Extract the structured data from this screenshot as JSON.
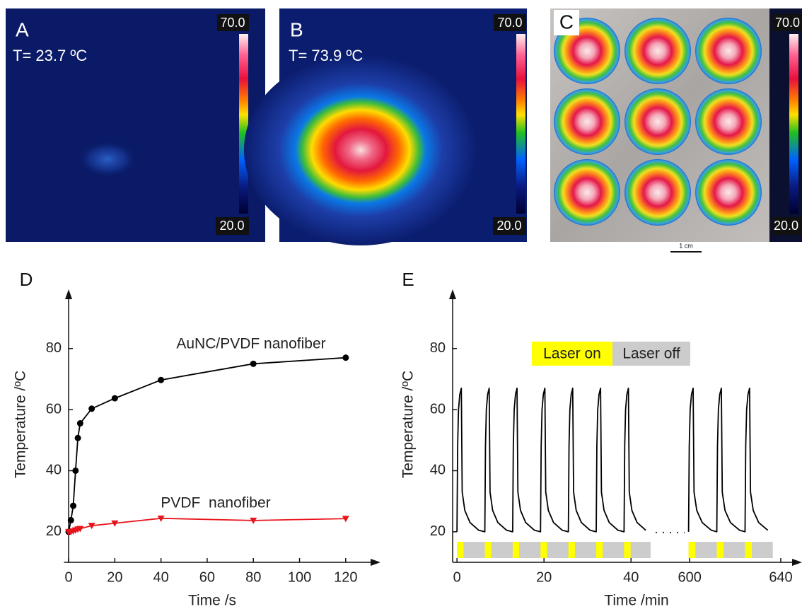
{
  "images": [
    {
      "label": "A",
      "annotation": "T= 23.7 ºC",
      "scale_max": "70.0",
      "scale_min": "20.0"
    },
    {
      "label": "B",
      "annotation": "T= 73.9 ºC",
      "scale_max": "70.0",
      "scale_min": "20.0"
    },
    {
      "label": "C",
      "scale_max": "70.0",
      "scale_min": "20.0",
      "scale_bar": "1 cm"
    }
  ],
  "chart_data": [
    {
      "type": "line",
      "panel_label": "D",
      "x_label": "Time /s",
      "y_label": "Temperature /ºC",
      "x": [
        0,
        1,
        2,
        3,
        4,
        5,
        10,
        20,
        40,
        80,
        120
      ],
      "series": [
        {
          "name": "AuNC/PVDF nanofiber",
          "color": "#000000",
          "marker": "circle",
          "values": [
            20,
            23.8,
            28.5,
            40,
            50.7,
            55.5,
            60.3,
            63.7,
            69.7,
            75,
            77
          ]
        },
        {
          "name": "PVDF  nanofiber",
          "color": "#e8141b",
          "marker": "triangle-down",
          "values": [
            20,
            20,
            20.2,
            20.5,
            20.8,
            21,
            22,
            22.8,
            24.4,
            23.7,
            24.3
          ]
        }
      ],
      "xlim": [
        -2,
        132
      ],
      "xticks": [
        0,
        20,
        40,
        60,
        80,
        100,
        120
      ],
      "ylim": [
        10,
        98
      ],
      "yticks": [
        20,
        40,
        60,
        80
      ],
      "grid": false
    },
    {
      "type": "line",
      "panel_label": "E",
      "x_label": "Time /min",
      "y_label": "Temperature /ºC",
      "x": [
        0,
        0.15,
        0.35,
        0.65,
        1,
        1.2,
        1.8,
        3,
        5,
        6.4,
        6.55,
        6.75,
        7.05,
        7.4,
        7.6,
        8.2,
        9.4,
        11.4,
        12.8,
        12.95,
        13.15,
        13.45,
        13.8,
        14,
        14.6,
        15.8,
        17.8,
        19.2,
        19.35,
        19.55,
        19.85,
        20.2,
        20.4,
        21,
        22.2,
        24.2,
        25.6,
        25.75,
        25.95,
        26.25,
        26.6,
        26.8,
        27.4,
        28.6,
        30.6,
        32,
        32.15,
        32.35,
        32.65,
        33,
        33.2,
        33.8,
        35,
        37,
        38.4,
        38.55,
        38.75,
        39.05,
        39.4,
        39.6,
        40.2,
        41.4,
        43.4,
        44.5,
        599.5,
        599.8,
        600.2,
        600.8,
        601.5,
        601.9,
        603.1,
        605.5,
        609.5,
        611.9,
        612.2,
        612.6,
        613.2,
        613.9,
        614.3,
        615.5,
        617.9,
        621.9,
        624.3,
        624.6,
        625,
        625.6,
        626.3,
        626.7,
        627.9,
        630.3,
        634.3
      ],
      "series": [
        {
          "color": "#000000",
          "values": [
            20,
            48,
            60,
            65,
            67,
            33,
            27,
            23,
            20.5,
            20,
            48,
            60,
            65,
            67,
            33,
            27,
            23,
            20.5,
            20,
            48,
            60,
            65,
            67,
            33,
            27,
            23,
            20.5,
            20,
            48,
            60,
            65,
            67,
            33,
            27,
            23,
            20.5,
            20,
            48,
            60,
            65,
            67,
            33,
            27,
            23,
            20.5,
            20,
            48,
            60,
            65,
            67,
            33,
            27,
            23,
            20.5,
            20,
            48,
            60,
            65,
            67,
            33,
            27,
            23,
            20.5,
            null,
            20,
            48,
            60,
            65,
            67,
            33,
            27,
            23,
            20.5,
            20,
            48,
            60,
            65,
            67,
            33,
            27,
            23,
            20.5,
            20,
            48,
            60,
            65,
            67,
            33,
            27,
            23,
            20.5
          ]
        }
      ],
      "laser": {
        "on_label": "Laser on",
        "off_label": "Laser off",
        "on_color": "#ffff00",
        "off_color": "#cccccc",
        "on_intervals": [
          [
            0,
            1.5
          ],
          [
            6.4,
            7.9
          ],
          [
            12.8,
            14.3
          ],
          [
            19.2,
            20.7
          ],
          [
            25.6,
            27.1
          ],
          [
            32,
            33.5
          ],
          [
            38.4,
            39.9
          ],
          [
            599.5,
            602.5
          ],
          [
            611.9,
            614.9
          ],
          [
            624.3,
            627.3
          ]
        ],
        "off_extents": [
          [
            0,
            44.5
          ],
          [
            599.5,
            636.5
          ]
        ]
      },
      "xsegments": [
        [
          -1,
          45
        ],
        [
          599,
          640
        ]
      ],
      "xticks": [
        0,
        20,
        40,
        600,
        640
      ],
      "ylim": [
        10,
        98
      ],
      "yticks": [
        20,
        40,
        60,
        80
      ],
      "grid": false
    }
  ]
}
